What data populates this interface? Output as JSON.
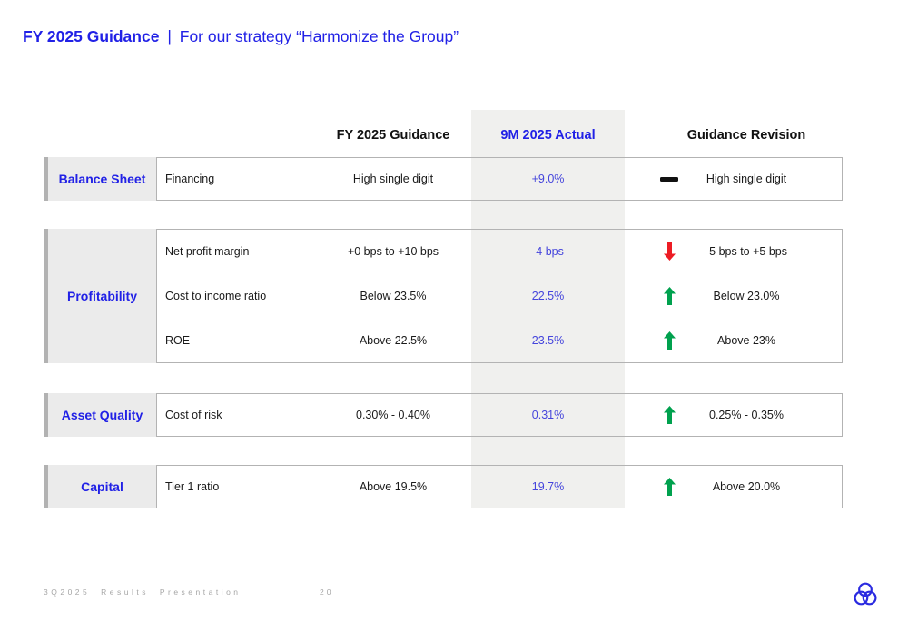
{
  "title": {
    "bold": "FY 2025 Guidance",
    "separator": "|",
    "rest": "For our strategy “Harmonize the Group”"
  },
  "table": {
    "headers": {
      "guidance": "FY 2025 Guidance",
      "actual": "9M 2025 Actual",
      "revision": "Guidance Revision"
    },
    "groups": [
      {
        "category": "Balance Sheet",
        "rows": [
          {
            "metric": "Financing",
            "guidance": "High single digit",
            "actual": "+9.0%",
            "direction": "flat",
            "revision": "High single digit"
          }
        ]
      },
      {
        "category": "Profitability",
        "rows": [
          {
            "metric": "Net profit margin",
            "guidance": "+0 bps to +10 bps",
            "actual": "-4 bps",
            "direction": "down",
            "revision": "-5 bps to +5 bps"
          },
          {
            "metric": "Cost to income ratio",
            "guidance": "Below 23.5%",
            "actual": "22.5%",
            "direction": "up",
            "revision": "Below 23.0%"
          },
          {
            "metric": "ROE",
            "guidance": "Above 22.5%",
            "actual": "23.5%",
            "direction": "up",
            "revision": "Above 23%"
          }
        ]
      },
      {
        "category": "Asset Quality",
        "rows": [
          {
            "metric": "Cost of risk",
            "guidance": "0.30% - 0.40%",
            "actual": "0.31%",
            "direction": "up",
            "revision": "0.25% - 0.35%"
          }
        ]
      },
      {
        "category": "Capital",
        "rows": [
          {
            "metric": "Tier 1 ratio",
            "guidance": "Above 19.5%",
            "actual": "19.7%",
            "direction": "up",
            "revision": "Above 20.0%"
          }
        ]
      }
    ]
  },
  "footer": {
    "left": "3Q2025 Results Presentation",
    "page": "20"
  },
  "colors": {
    "accent_blue": "#2121e6",
    "value_blue": "#4545dc",
    "arrow_green": "#00a14e",
    "arrow_red": "#ed1c24",
    "band_gray": "#f0f0ee",
    "category_gray": "#ebebeb"
  },
  "icons": {
    "flat": "dash-icon",
    "up": "up-arrow-icon",
    "down": "down-arrow-icon",
    "logo": "bank-logo-icon"
  }
}
